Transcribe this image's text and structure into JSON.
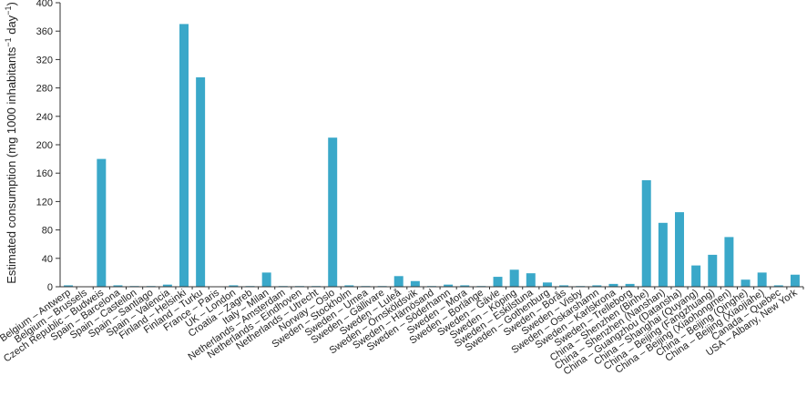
{
  "chart_data": {
    "type": "bar",
    "ylabel": "Estimated consumption (mg 1000 inhabitants",
    "ylabel_sup": "−1",
    "ylabel_tail": " day",
    "ylabel_sup2": "−1",
    "ylabel_end": ")",
    "ylim": [
      0,
      400
    ],
    "yticks": [
      0,
      40,
      80,
      120,
      160,
      200,
      240,
      280,
      320,
      360,
      400
    ],
    "grid": false,
    "bar_color": "#3aa8c9",
    "categories": [
      "Belgium – Antwerp",
      "Belgium – Brussels",
      "Czech Republic – Budweis",
      "Spain – Barcelona",
      "Spain – Castellon",
      "Spain – Santiago",
      "Spain – Valencia",
      "Finland – Helsinki",
      "Finland – Turku",
      "France – Paris",
      "UK – London",
      "Croatia – Zagreb",
      "Italy – Milan",
      "Netherlands – Amsterdam",
      "Netherlands – Eindhoven",
      "Netherlands – Utrecht",
      "Norway – Oslo",
      "Sweden – Stockholm",
      "Sweden – Umea",
      "Sweden – Gällivare",
      "Sweden – Luleå",
      "Sweden – Örnsköldsvik",
      "Sweden – Härnösand",
      "Sweden – Söderhamn",
      "Sweden – Mora",
      "Sweden – Borlänge",
      "Sweden – Gävle",
      "Sweden – Köping",
      "Sweden – Eskilstuna",
      "Sweden – Gothenburg",
      "Sweden – Borås",
      "Sweden – Visby",
      "Sweden – Oskarshamn",
      "Sweden – Karlskrona",
      "Sweden – Trelleborg",
      "China – Shenzhen (Binhe)",
      "China – Shenzhen (Nanshan)",
      "China – Guangzhou (Datansha)",
      "China – Shanghai (Quyang)",
      "China – Beijing (Fangzhuang)",
      "China – Beijing (Xiaohongmen)",
      "China – Beijing (Qinghe)",
      "China – Beijing (Xiaojiahe)",
      "Canada – Quebec",
      "USA – Albany, New York"
    ],
    "values": [
      2,
      0.5,
      180,
      2,
      1,
      1,
      3,
      370,
      295,
      0.5,
      2,
      1,
      20,
      1,
      1,
      1,
      210,
      2,
      1,
      1,
      15,
      8,
      1,
      3,
      2,
      1,
      14,
      24,
      19,
      6,
      2,
      1,
      2,
      4,
      4,
      150,
      90,
      105,
      30,
      45,
      70,
      10,
      20,
      2,
      17
    ]
  }
}
